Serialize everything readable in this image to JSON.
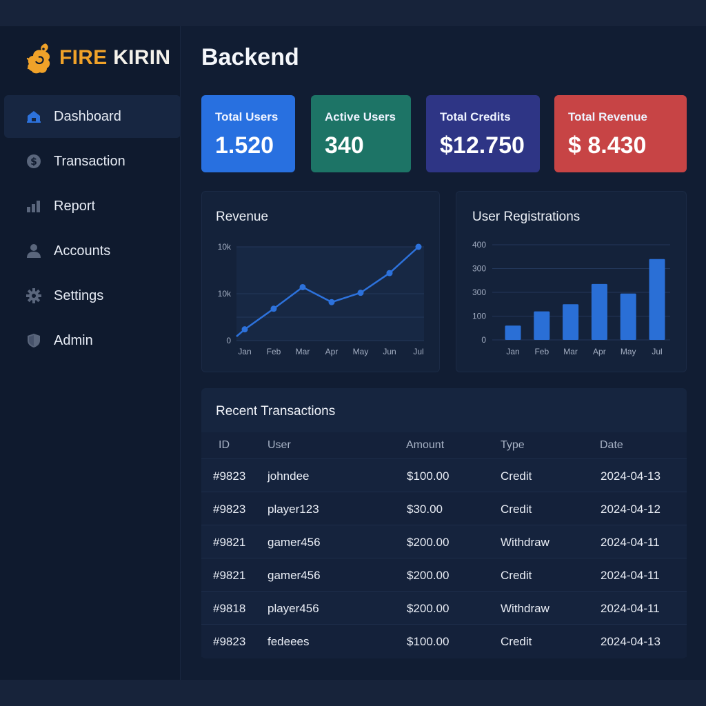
{
  "brand": {
    "part1": "FIRE",
    "part2": "KIRIN"
  },
  "sidebar": {
    "items": [
      {
        "label": "Dashboard",
        "icon": "home-icon",
        "active": true
      },
      {
        "label": "Transaction",
        "icon": "dollar-coin-icon",
        "active": false
      },
      {
        "label": "Report",
        "icon": "bar-chart-icon",
        "active": false
      },
      {
        "label": "Accounts",
        "icon": "user-icon",
        "active": false
      },
      {
        "label": "Settings",
        "icon": "gear-icon",
        "active": false
      },
      {
        "label": "Admin",
        "icon": "shield-icon",
        "active": false
      }
    ]
  },
  "main": {
    "title": "Backend"
  },
  "stats": [
    {
      "label": "Total Users",
      "value": "1.520",
      "color": "#2870e0"
    },
    {
      "label": "Active Users",
      "value": "340",
      "color": "#1d7466"
    },
    {
      "label": "Total Credits",
      "value": "$12.750",
      "color": "#2e3585"
    },
    {
      "label": "Total Revenue",
      "value": "$ 8.430",
      "color": "#c74445"
    }
  ],
  "revenue": {
    "title": "Revenue",
    "chart_data": {
      "type": "line",
      "x": [
        "Jan",
        "Feb",
        "Mar",
        "Apr",
        "May",
        "Jun",
        "Jul"
      ],
      "y_tick_labels": [
        "10k",
        "10k",
        "0"
      ],
      "values": [
        1.2,
        3.4,
        5.7,
        4.1,
        5.1,
        7.2,
        10.0
      ],
      "ylim": [
        0,
        10
      ],
      "color": "#2d72dc"
    }
  },
  "registrations": {
    "title": "User Registrations",
    "chart_data": {
      "type": "bar",
      "categories": [
        "Jan",
        "Feb",
        "Mar",
        "Apr",
        "May",
        "Jul"
      ],
      "y_tick_labels": [
        "400",
        "300",
        "300",
        "100",
        "0"
      ],
      "values": [
        60,
        120,
        150,
        235,
        195,
        340
      ],
      "ylim": [
        0,
        400
      ],
      "color": "#2a6fd6"
    }
  },
  "transactions": {
    "title": "Recent Transactions",
    "columns": [
      "ID",
      "User",
      "Amount",
      "Type",
      "Date"
    ],
    "rows": [
      [
        "#9823",
        "johndee",
        "$100.00",
        "Credit",
        "2024-04-13"
      ],
      [
        "#9823",
        "player123",
        "$30.00",
        "Credit",
        "2024-04-12"
      ],
      [
        "#9821",
        "gamer456",
        "$200.00",
        "Withdraw",
        "2024-04-11"
      ],
      [
        "#9821",
        "gamer456",
        "$200.00",
        "Credit",
        "2024-04-11"
      ],
      [
        "#9818",
        "player456",
        "$200.00",
        "Withdraw",
        "2024-04-11"
      ],
      [
        "#9823",
        "fedeees",
        "$100.00",
        "Credit",
        "2024-04-13"
      ]
    ]
  }
}
